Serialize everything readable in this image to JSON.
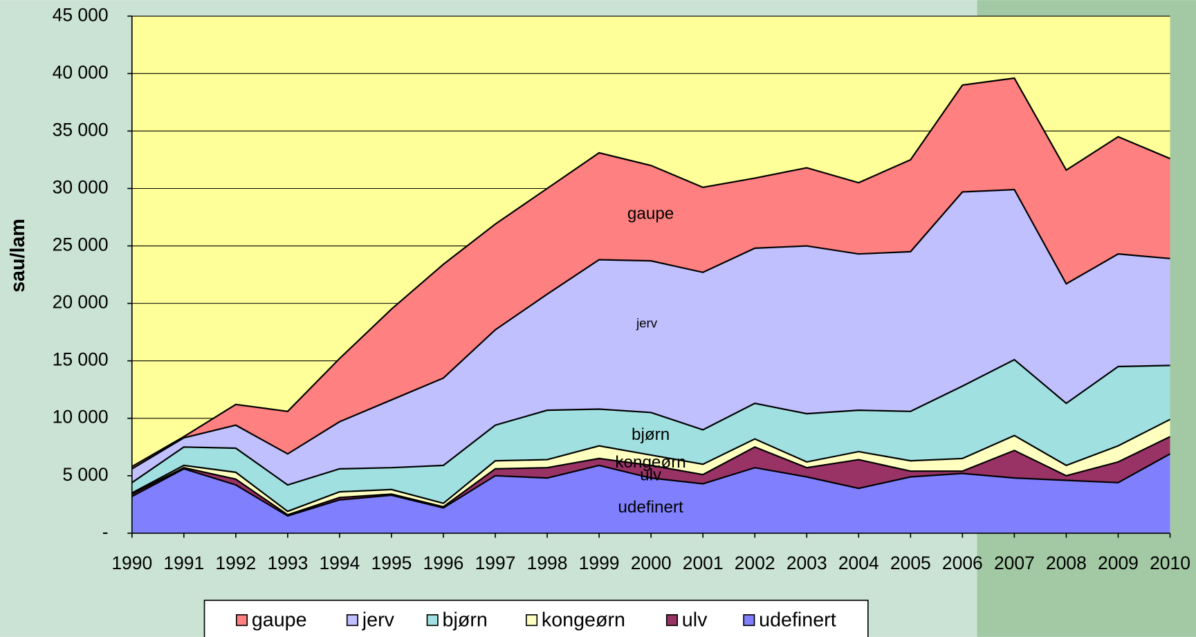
{
  "chart_data": {
    "type": "stacked-area",
    "y_label": "sau/lam",
    "categories": [
      "1990",
      "1991",
      "1992",
      "1993",
      "1994",
      "1995",
      "1996",
      "1997",
      "1998",
      "1999",
      "2000",
      "2001",
      "2002",
      "2003",
      "2004",
      "2005",
      "2006",
      "2007",
      "2008",
      "2009",
      "2010"
    ],
    "series": [
      {
        "name": "gaupe",
        "color": "#ff8080",
        "values": [
          200,
          100,
          1800,
          3700,
          5500,
          7900,
          9900,
          9200,
          9200,
          9300,
          8300,
          7400,
          6100,
          6800,
          6200,
          8000,
          9300,
          9700,
          9900,
          10200,
          8700
        ]
      },
      {
        "name": "jerv",
        "color": "#c0c0ff",
        "values": [
          1200,
          800,
          2000,
          2700,
          4100,
          5900,
          7600,
          8300,
          10100,
          13000,
          13200,
          13700,
          13500,
          14600,
          13600,
          13900,
          16900,
          14800,
          10400,
          9800,
          9300
        ]
      },
      {
        "name": "bjørn",
        "color": "#a0e0e0",
        "values": [
          900,
          1600,
          2100,
          2300,
          2000,
          1900,
          3300,
          3100,
          4300,
          3200,
          3700,
          3000,
          3100,
          4200,
          3600,
          4300,
          6300,
          6600,
          5400,
          6900,
          4700
        ]
      },
      {
        "name": "kongeørn",
        "color": "#ffffc0",
        "values": [
          100,
          200,
          600,
          300,
          500,
          400,
          300,
          700,
          700,
          1100,
          900,
          900,
          700,
          500,
          700,
          900,
          1100,
          1300,
          900,
          1400,
          1500
        ]
      },
      {
        "name": "ulv",
        "color": "#993366",
        "values": [
          200,
          100,
          500,
          100,
          200,
          100,
          100,
          600,
          900,
          600,
          1100,
          800,
          1800,
          800,
          2500,
          500,
          200,
          2400,
          400,
          1800,
          1500
        ]
      },
      {
        "name": "udefinert",
        "color": "#8080ff",
        "values": [
          3200,
          5600,
          4200,
          1500,
          2900,
          3300,
          2200,
          5000,
          4800,
          5900,
          4800,
          4300,
          5700,
          4900,
          3900,
          4900,
          5200,
          4800,
          4600,
          4400,
          6900
        ]
      }
    ],
    "annotations": [
      "gaupe",
      "jerv",
      "bjørn",
      "kongeørn",
      "ulv",
      "udefinert"
    ],
    "ylim": [
      0,
      45000
    ],
    "yticks": [
      {
        "value": 0,
        "label": "-"
      },
      {
        "value": 5000,
        "label": "5 000"
      },
      {
        "value": 10000,
        "label": "10 000"
      },
      {
        "value": 15000,
        "label": "15 000"
      },
      {
        "value": 20000,
        "label": "20 000"
      },
      {
        "value": 25000,
        "label": "25 000"
      },
      {
        "value": 30000,
        "label": "30 000"
      },
      {
        "value": 35000,
        "label": "35 000"
      },
      {
        "value": 40000,
        "label": "40 000"
      },
      {
        "value": 45000,
        "label": "45 000"
      }
    ],
    "grid": true,
    "plot_background": "#ffff99",
    "legend": "bottom"
  }
}
